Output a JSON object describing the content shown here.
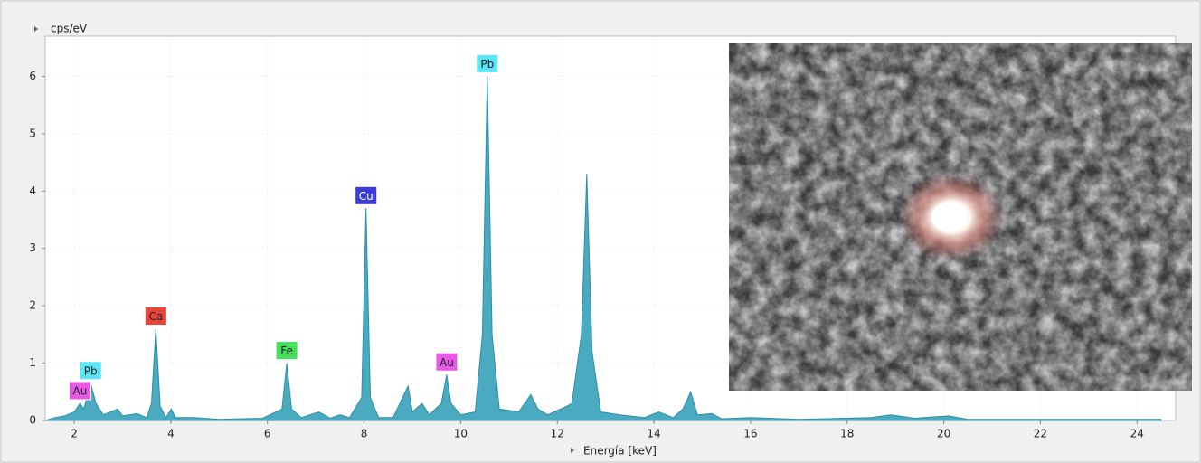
{
  "chart_data": {
    "type": "area",
    "y_label": "cps/eV",
    "x_label": "Energía [keV]",
    "x": [
      1.4,
      1.6,
      1.8,
      2.0,
      2.12,
      2.2,
      2.34,
      2.45,
      2.6,
      2.9,
      3.0,
      3.3,
      3.5,
      3.6,
      3.69,
      3.78,
      3.9,
      4.01,
      4.1,
      4.5,
      5.0,
      5.9,
      6.3,
      6.4,
      6.5,
      6.7,
      7.06,
      7.3,
      7.5,
      7.7,
      7.95,
      8.04,
      8.13,
      8.3,
      8.6,
      8.91,
      9.0,
      9.2,
      9.35,
      9.6,
      9.71,
      9.8,
      10.0,
      10.3,
      10.45,
      10.55,
      10.65,
      10.8,
      11.2,
      11.45,
      11.6,
      11.8,
      12.2,
      12.3,
      12.5,
      12.61,
      12.72,
      12.9,
      13.3,
      13.8,
      14.1,
      14.4,
      14.6,
      14.76,
      14.9,
      15.2,
      15.4,
      16,
      17,
      18.5,
      18.9,
      19.4,
      20.1,
      20.5,
      22,
      24.5
    ],
    "values": [
      0,
      0.05,
      0.08,
      0.15,
      0.3,
      0.2,
      0.65,
      0.3,
      0.1,
      0.2,
      0.08,
      0.12,
      0.05,
      0.3,
      1.6,
      0.25,
      0.05,
      0.2,
      0.05,
      0.05,
      0.02,
      0.04,
      0.2,
      1.0,
      0.2,
      0.05,
      0.15,
      0.04,
      0.1,
      0.05,
      0.4,
      3.7,
      0.4,
      0.05,
      0.05,
      0.6,
      0.15,
      0.3,
      0.1,
      0.3,
      0.8,
      0.3,
      0.1,
      0.15,
      1.5,
      6.0,
      1.5,
      0.2,
      0.15,
      0.45,
      0.2,
      0.1,
      0.25,
      0.3,
      1.5,
      4.3,
      1.2,
      0.15,
      0.1,
      0.05,
      0.15,
      0.05,
      0.2,
      0.5,
      0.1,
      0.12,
      0.03,
      0.05,
      0.02,
      0.05,
      0.1,
      0.04,
      0.08,
      0.02,
      0.02,
      0.02
    ],
    "color": "#4aaabf",
    "xlim": [
      1.4,
      24.8
    ],
    "ylim": [
      0,
      6.7
    ],
    "xticks": [
      2,
      4,
      6,
      8,
      10,
      12,
      14,
      16,
      18,
      20,
      22,
      24
    ],
    "yticks": [
      0,
      1,
      2,
      3,
      4,
      5,
      6
    ],
    "annotations": [
      {
        "text": "Au",
        "x": 2.12,
        "y": 0.3,
        "color": "#e65ae6"
      },
      {
        "text": "Pb",
        "x": 2.34,
        "y": 0.65,
        "color": "#5ce6f5"
      },
      {
        "text": "Ca",
        "x": 3.69,
        "y": 1.6,
        "color": "#e8443c"
      },
      {
        "text": "Fe",
        "x": 6.4,
        "y": 1.0,
        "color": "#44e05c"
      },
      {
        "text": "Cu",
        "x": 8.04,
        "y": 3.7,
        "color": "#3c3cd8"
      },
      {
        "text": "Au",
        "x": 9.71,
        "y": 0.8,
        "color": "#e65ae6"
      },
      {
        "text": "Pb",
        "x": 10.55,
        "y": 6.0,
        "color": "#5ce6f5"
      }
    ]
  }
}
